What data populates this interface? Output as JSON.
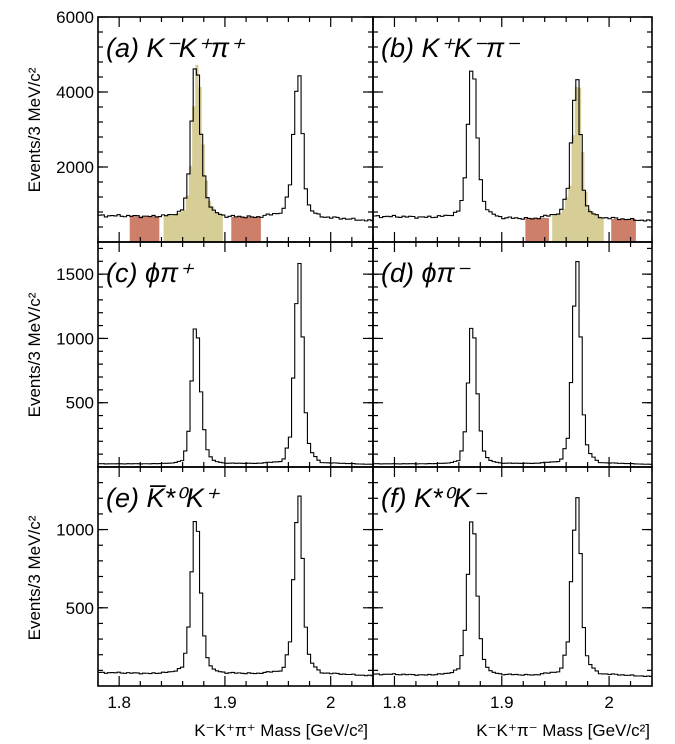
{
  "figure": {
    "ylabel": "Events/3 MeV/c²",
    "xlabel_left": "K⁻K⁺π⁺ Mass [GeV/c²]",
    "xlabel_right": "K⁻K⁺π⁻ Mass [GeV/c²]"
  },
  "chart_data": [
    {
      "type": "histogram",
      "panel": "a",
      "label": "(a) K⁻K⁺π⁺",
      "xlim": [
        1.78,
        2.04
      ],
      "ylim": [
        0,
        6000
      ],
      "yticks": [
        2000,
        4000,
        6000
      ],
      "xticks": [
        1.8,
        1.9,
        2.0
      ],
      "x": [
        1.8,
        1.83,
        1.85,
        1.86,
        1.865,
        1.868,
        1.871,
        1.873,
        1.876,
        1.879,
        1.884,
        1.89,
        1.9,
        1.93,
        1.955,
        1.962,
        1.966,
        1.969,
        1.972,
        1.975,
        1.98,
        1.99,
        2.04
      ],
      "y": [
        700,
        680,
        720,
        850,
        1500,
        3100,
        4650,
        4800,
        3800,
        2000,
        1100,
        800,
        690,
        660,
        800,
        1600,
        3600,
        4750,
        3900,
        1700,
        900,
        680,
        560
      ],
      "bands": [
        {
          "name": "sideband-low",
          "range": [
            1.81,
            1.838
          ],
          "color": "#cd7f6a"
        },
        {
          "name": "signal",
          "range": [
            1.842,
            1.898
          ],
          "color": "#d6cd97"
        },
        {
          "name": "sideband-high",
          "range": [
            1.906,
            1.934
          ],
          "color": "#cd7f6a"
        }
      ],
      "signal_peak": 1.87
    },
    {
      "type": "histogram",
      "panel": "b",
      "label": "(b) K⁺K⁻π⁻",
      "xlim": [
        1.78,
        2.04
      ],
      "ylim": [
        0,
        6000
      ],
      "yticks": [
        2000,
        4000,
        6000
      ],
      "xticks": [
        1.8,
        1.9,
        2.0
      ],
      "x": [
        1.8,
        1.83,
        1.85,
        1.86,
        1.865,
        1.868,
        1.871,
        1.873,
        1.876,
        1.879,
        1.884,
        1.89,
        1.9,
        1.93,
        1.955,
        1.962,
        1.966,
        1.969,
        1.972,
        1.975,
        1.98,
        1.99,
        2.04
      ],
      "y": [
        680,
        660,
        700,
        820,
        1400,
        3000,
        4600,
        4700,
        3700,
        1900,
        1000,
        760,
        650,
        620,
        780,
        1500,
        3300,
        4550,
        3900,
        1650,
        880,
        660,
        560
      ],
      "bands": [
        {
          "name": "sideband-low",
          "range": [
            1.922,
            1.944
          ],
          "color": "#cd7f6a"
        },
        {
          "name": "signal",
          "range": [
            1.947,
            1.995
          ],
          "color": "#d6cd97"
        },
        {
          "name": "sideband-high",
          "range": [
            2.002,
            2.025
          ],
          "color": "#cd7f6a"
        }
      ],
      "signal_peak": 1.969
    },
    {
      "type": "histogram",
      "panel": "c",
      "label": "(c) ϕπ⁺",
      "xlim": [
        1.78,
        2.04
      ],
      "ylim": [
        0,
        1750
      ],
      "yticks": [
        500,
        1000,
        1500
      ],
      "xticks": [
        1.8,
        1.9,
        2.0
      ],
      "x": [
        1.8,
        1.83,
        1.85,
        1.86,
        1.865,
        1.868,
        1.871,
        1.873,
        1.876,
        1.879,
        1.884,
        1.89,
        1.9,
        1.93,
        1.955,
        1.962,
        1.966,
        1.969,
        1.972,
        1.975,
        1.98,
        1.99,
        2.04
      ],
      "y": [
        25,
        25,
        30,
        50,
        200,
        620,
        1080,
        1120,
        820,
        360,
        110,
        45,
        30,
        28,
        45,
        250,
        950,
        1690,
        1400,
        560,
        140,
        35,
        20
      ]
    },
    {
      "type": "histogram",
      "panel": "d",
      "label": "(d) ϕπ⁻",
      "xlim": [
        1.78,
        2.04
      ],
      "ylim": [
        0,
        1750
      ],
      "yticks": [
        500,
        1000,
        1500
      ],
      "xticks": [
        1.8,
        1.9,
        2.0
      ],
      "x": [
        1.8,
        1.83,
        1.85,
        1.86,
        1.865,
        1.868,
        1.871,
        1.873,
        1.876,
        1.879,
        1.884,
        1.89,
        1.9,
        1.93,
        1.955,
        1.962,
        1.966,
        1.969,
        1.972,
        1.975,
        1.98,
        1.99,
        2.04
      ],
      "y": [
        25,
        25,
        30,
        50,
        200,
        600,
        1080,
        1140,
        800,
        350,
        100,
        45,
        30,
        28,
        45,
        240,
        900,
        1700,
        1420,
        540,
        130,
        35,
        20
      ]
    },
    {
      "type": "histogram",
      "panel": "e",
      "label": "(e) K̅*⁰K⁺",
      "xlim": [
        1.78,
        2.04
      ],
      "ylim": [
        0,
        1400
      ],
      "yticks": [
        500,
        1000
      ],
      "xticks": [
        1.8,
        1.9,
        2.0
      ],
      "x": [
        1.8,
        1.83,
        1.85,
        1.86,
        1.865,
        1.868,
        1.871,
        1.873,
        1.876,
        1.879,
        1.884,
        1.89,
        1.9,
        1.93,
        1.955,
        1.962,
        1.966,
        1.969,
        1.972,
        1.975,
        1.98,
        1.99,
        2.04
      ],
      "y": [
        85,
        80,
        90,
        120,
        300,
        700,
        1060,
        1090,
        820,
        380,
        160,
        100,
        85,
        80,
        100,
        300,
        900,
        1270,
        1100,
        480,
        170,
        85,
        65
      ]
    },
    {
      "type": "histogram",
      "panel": "f",
      "label": "(f) K*⁰K⁻",
      "xlim": [
        1.78,
        2.04
      ],
      "ylim": [
        0,
        1400
      ],
      "yticks": [
        500,
        1000
      ],
      "xticks": [
        1.8,
        1.9,
        2.0
      ],
      "x": [
        1.8,
        1.83,
        1.85,
        1.86,
        1.865,
        1.868,
        1.871,
        1.873,
        1.876,
        1.879,
        1.884,
        1.89,
        1.9,
        1.93,
        1.955,
        1.962,
        1.966,
        1.969,
        1.972,
        1.975,
        1.98,
        1.99,
        2.04
      ],
      "y": [
        75,
        70,
        80,
        110,
        280,
        680,
        1060,
        1080,
        800,
        360,
        150,
        90,
        75,
        70,
        95,
        300,
        880,
        1190,
        1160,
        480,
        160,
        80,
        60
      ]
    }
  ]
}
